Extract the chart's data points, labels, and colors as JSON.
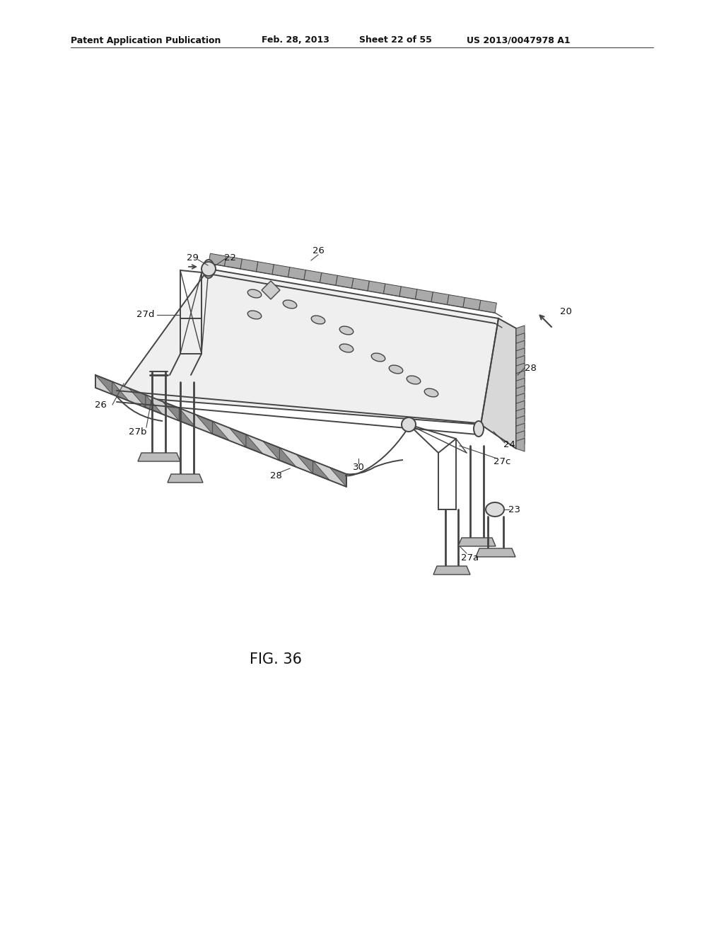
{
  "bg_color": "#ffffff",
  "header_text": "Patent Application Publication",
  "header_date": "Feb. 28, 2013",
  "header_sheet": "Sheet 22 of 55",
  "header_patent": "US 2013/0047978 A1",
  "fig_label": "FIG. 36",
  "line_color": "#444444",
  "fill_light": "#e8e8e8",
  "fill_med": "#cccccc",
  "fill_dark": "#999999",
  "fill_hatch": "#888888"
}
